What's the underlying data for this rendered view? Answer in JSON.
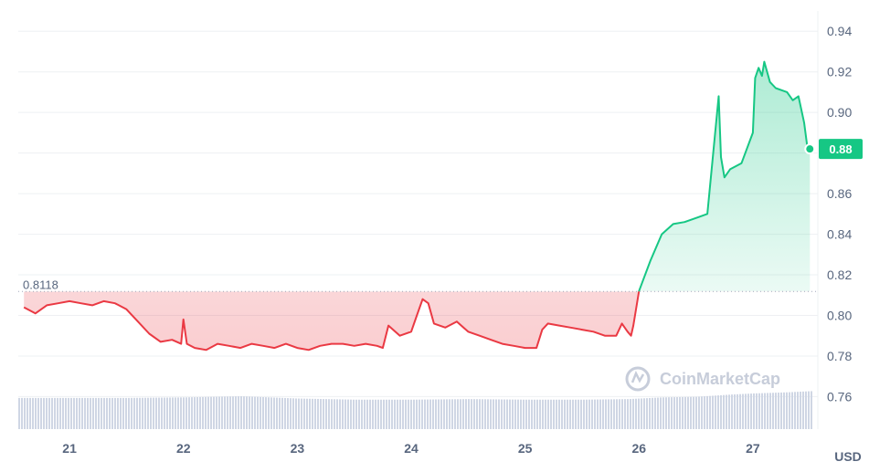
{
  "chart_data": {
    "type": "line",
    "currency_label": "USD",
    "reference_price": 0.8118,
    "reference_label": "0.8118",
    "current_price": 0.882,
    "current_price_label": "0.88",
    "y_ticks": [
      0.76,
      0.78,
      0.8,
      0.82,
      0.84,
      0.86,
      0.88,
      0.9,
      0.92,
      0.94
    ],
    "y_tick_labels": [
      "0.76",
      "0.78",
      "0.80",
      "0.82",
      "0.84",
      "0.86",
      "0.88",
      "0.90",
      "0.92",
      "0.94"
    ],
    "ylim": [
      0.744,
      0.95
    ],
    "x_ticks": [
      21,
      22,
      23,
      24,
      25,
      26,
      27
    ],
    "x_tick_labels": [
      "21",
      "22",
      "23",
      "24",
      "25",
      "26",
      "27"
    ],
    "xlim": [
      20.55,
      27.53
    ],
    "price_series": {
      "name": "",
      "x": [
        20.6,
        20.7,
        20.8,
        20.9,
        21.0,
        21.1,
        21.2,
        21.3,
        21.4,
        21.5,
        21.6,
        21.7,
        21.8,
        21.9,
        21.98,
        22.0,
        22.03,
        22.1,
        22.2,
        22.3,
        22.4,
        22.5,
        22.6,
        22.7,
        22.8,
        22.9,
        23.0,
        23.1,
        23.2,
        23.3,
        23.4,
        23.5,
        23.6,
        23.7,
        23.75,
        23.8,
        23.9,
        24.0,
        24.05,
        24.1,
        24.15,
        24.2,
        24.3,
        24.4,
        24.5,
        24.6,
        24.7,
        24.8,
        24.9,
        25.0,
        25.1,
        25.15,
        25.2,
        25.3,
        25.4,
        25.5,
        25.6,
        25.7,
        25.8,
        25.85,
        25.9,
        25.93,
        25.95,
        26.0,
        26.1,
        26.2,
        26.3,
        26.4,
        26.5,
        26.6,
        26.7,
        26.72,
        26.75,
        26.8,
        26.9,
        27.0,
        27.02,
        27.05,
        27.08,
        27.1,
        27.15,
        27.2,
        27.3,
        27.35,
        27.4,
        27.45,
        27.48,
        27.5
      ],
      "y": [
        0.804,
        0.801,
        0.805,
        0.806,
        0.807,
        0.806,
        0.805,
        0.807,
        0.806,
        0.803,
        0.797,
        0.791,
        0.787,
        0.788,
        0.786,
        0.798,
        0.786,
        0.784,
        0.783,
        0.786,
        0.785,
        0.784,
        0.786,
        0.785,
        0.784,
        0.786,
        0.784,
        0.783,
        0.785,
        0.786,
        0.786,
        0.785,
        0.786,
        0.785,
        0.784,
        0.795,
        0.79,
        0.792,
        0.8,
        0.808,
        0.806,
        0.796,
        0.794,
        0.797,
        0.792,
        0.79,
        0.788,
        0.786,
        0.785,
        0.784,
        0.784,
        0.793,
        0.796,
        0.795,
        0.794,
        0.793,
        0.792,
        0.79,
        0.79,
        0.796,
        0.792,
        0.79,
        0.795,
        0.812,
        0.827,
        0.84,
        0.845,
        0.846,
        0.848,
        0.85,
        0.908,
        0.878,
        0.868,
        0.872,
        0.875,
        0.89,
        0.917,
        0.922,
        0.918,
        0.925,
        0.915,
        0.912,
        0.91,
        0.906,
        0.908,
        0.895,
        0.882,
        0.882
      ]
    },
    "volume_series": {
      "x": [
        20.6,
        21.0,
        21.5,
        22.0,
        22.5,
        23.0,
        23.5,
        24.0,
        24.5,
        25.0,
        25.5,
        25.9,
        26.2,
        26.5,
        26.8,
        27.0,
        27.3,
        27.5
      ],
      "relative": [
        0.55,
        0.55,
        0.55,
        0.56,
        0.58,
        0.54,
        0.52,
        0.52,
        0.53,
        0.52,
        0.52,
        0.53,
        0.56,
        0.57,
        0.61,
        0.63,
        0.65,
        0.67
      ]
    },
    "colors": {
      "down": "#ea3943",
      "up": "#16c784",
      "grid": "#eef0f3",
      "volume": "#cfd6e4",
      "reference_line": "#a1a7bb",
      "axis_text": "#58667e"
    },
    "watermark": "CoinMarketCap",
    "grid": true
  }
}
